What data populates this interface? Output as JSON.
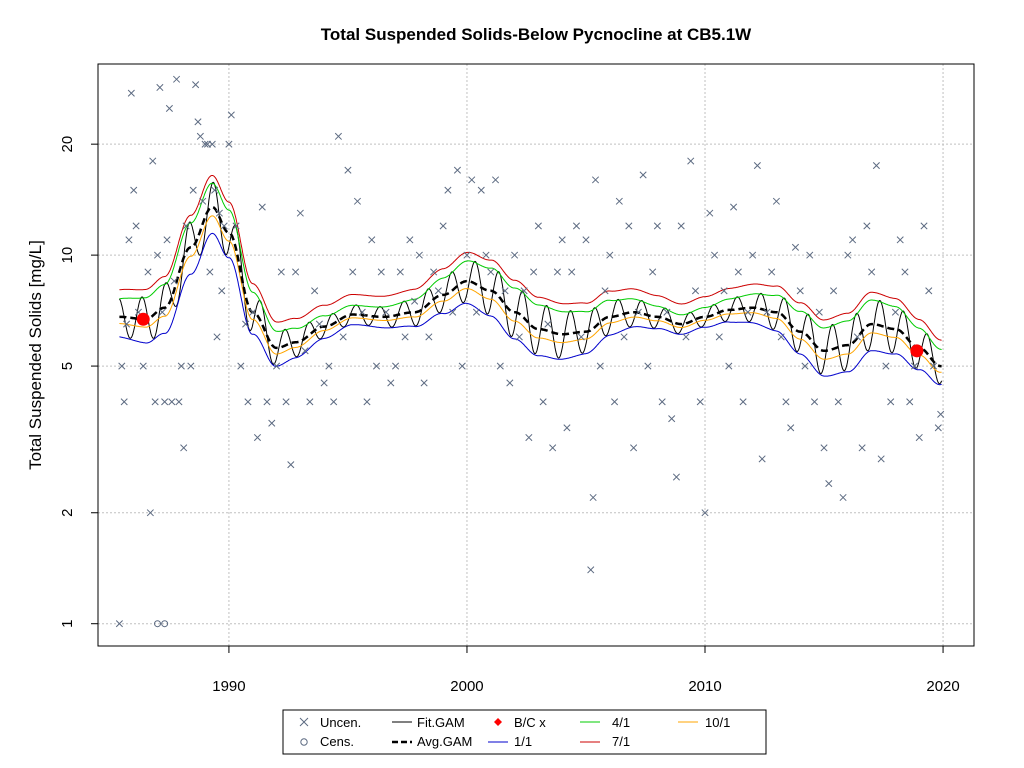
{
  "chart_data": {
    "type": "scatter",
    "title": "Total Suspended Solids-Below Pycnocline at CB5.1W",
    "xlabel": "",
    "ylabel": "Total Suspended Solids [mg/L]",
    "xlim": [
      1984.5,
      2021.3
    ],
    "ylim": [
      0.87,
      33
    ],
    "log_y": true,
    "grid": true,
    "x_ticks": [
      1990,
      2000,
      2010,
      2020
    ],
    "y_ticks": [
      1,
      2,
      5,
      10,
      20
    ],
    "x_tick_labels": [
      "1990",
      "2000",
      "2010",
      "2020"
    ],
    "y_tick_labels": [
      "1",
      "2",
      "5",
      "10",
      "20"
    ],
    "colors": {
      "points": "#5d6b82",
      "fit": "#000000",
      "avg": "#000000",
      "bc": "#ff0000",
      "s1_1": "#0000cc",
      "s4_1": "#00cc00",
      "s7_1": "#cc0000",
      "s10_1": "#ffa500",
      "grid": "#c0c0c0"
    },
    "uncensored_points": [
      [
        1985.4,
        1.0
      ],
      [
        1985.5,
        5.0
      ],
      [
        1985.6,
        4.0
      ],
      [
        1985.7,
        6.5
      ],
      [
        1985.8,
        11.0
      ],
      [
        1985.9,
        27.5
      ],
      [
        1986.0,
        15.0
      ],
      [
        1986.1,
        12.0
      ],
      [
        1986.2,
        7.0
      ],
      [
        1986.4,
        5.0
      ],
      [
        1986.6,
        9.0
      ],
      [
        1986.7,
        2.0
      ],
      [
        1986.8,
        18.0
      ],
      [
        1986.9,
        4.0
      ],
      [
        1987.0,
        10.0
      ],
      [
        1987.1,
        28.5
      ],
      [
        1987.2,
        7.0
      ],
      [
        1987.3,
        4.0
      ],
      [
        1987.4,
        11.0
      ],
      [
        1987.5,
        25.0
      ],
      [
        1987.6,
        4.0
      ],
      [
        1987.7,
        8.5
      ],
      [
        1987.8,
        30.0
      ],
      [
        1987.9,
        4.0
      ],
      [
        1988.0,
        5.0
      ],
      [
        1988.1,
        3.0
      ],
      [
        1988.2,
        12.0
      ],
      [
        1988.4,
        5.0
      ],
      [
        1988.5,
        15.0
      ],
      [
        1988.6,
        29.0
      ],
      [
        1988.7,
        23.0
      ],
      [
        1988.8,
        21.0
      ],
      [
        1988.9,
        14.0
      ],
      [
        1989.0,
        20.0
      ],
      [
        1989.1,
        20.0
      ],
      [
        1989.2,
        9.0
      ],
      [
        1989.3,
        20.0
      ],
      [
        1989.4,
        15.0
      ],
      [
        1989.5,
        6.0
      ],
      [
        1989.6,
        13.0
      ],
      [
        1989.7,
        8.0
      ],
      [
        1989.8,
        12.0
      ],
      [
        1990.0,
        20.0
      ],
      [
        1990.1,
        24.0
      ],
      [
        1990.3,
        12.0
      ],
      [
        1990.5,
        5.0
      ],
      [
        1990.7,
        6.5
      ],
      [
        1990.8,
        4.0
      ],
      [
        1991.0,
        7.0
      ],
      [
        1991.2,
        3.2
      ],
      [
        1991.4,
        13.5
      ],
      [
        1991.6,
        4.0
      ],
      [
        1991.8,
        3.5
      ],
      [
        1992.0,
        5.0
      ],
      [
        1992.2,
        9.0
      ],
      [
        1992.4,
        4.0
      ],
      [
        1992.6,
        2.7
      ],
      [
        1992.8,
        9.0
      ],
      [
        1993.0,
        13.0
      ],
      [
        1993.2,
        5.5
      ],
      [
        1993.4,
        4.0
      ],
      [
        1993.6,
        8.0
      ],
      [
        1993.8,
        6.5
      ],
      [
        1994.0,
        4.5
      ],
      [
        1994.2,
        5.0
      ],
      [
        1994.4,
        4.0
      ],
      [
        1994.6,
        21.0
      ],
      [
        1994.8,
        6.0
      ],
      [
        1995.0,
        17.0
      ],
      [
        1995.2,
        9.0
      ],
      [
        1995.4,
        14.0
      ],
      [
        1995.6,
        7.0
      ],
      [
        1995.8,
        4.0
      ],
      [
        1996.0,
        11.0
      ],
      [
        1996.2,
        5.0
      ],
      [
        1996.4,
        9.0
      ],
      [
        1996.6,
        7.0
      ],
      [
        1996.8,
        4.5
      ],
      [
        1997.0,
        5.0
      ],
      [
        1997.2,
        9.0
      ],
      [
        1997.4,
        6.0
      ],
      [
        1997.6,
        11.0
      ],
      [
        1997.8,
        7.5
      ],
      [
        1998.0,
        10.0
      ],
      [
        1998.2,
        4.5
      ],
      [
        1998.4,
        6.0
      ],
      [
        1998.6,
        9.0
      ],
      [
        1998.8,
        8.0
      ],
      [
        1999.0,
        12.0
      ],
      [
        1999.2,
        15.0
      ],
      [
        1999.4,
        7.0
      ],
      [
        1999.6,
        17.0
      ],
      [
        1999.8,
        5.0
      ],
      [
        2000.0,
        10.0
      ],
      [
        2000.2,
        16.0
      ],
      [
        2000.4,
        7.0
      ],
      [
        2000.6,
        15.0
      ],
      [
        2000.8,
        10.0
      ],
      [
        2001.0,
        9.0
      ],
      [
        2001.2,
        16.0
      ],
      [
        2001.4,
        5.0
      ],
      [
        2001.6,
        8.0
      ],
      [
        2001.8,
        4.5
      ],
      [
        2002.0,
        10.0
      ],
      [
        2002.2,
        6.0
      ],
      [
        2002.4,
        8.0
      ],
      [
        2002.6,
        3.2
      ],
      [
        2002.8,
        9.0
      ],
      [
        2003.0,
        12.0
      ],
      [
        2003.2,
        4.0
      ],
      [
        2003.4,
        6.5
      ],
      [
        2003.6,
        3.0
      ],
      [
        2003.8,
        9.0
      ],
      [
        2004.0,
        11.0
      ],
      [
        2004.2,
        3.4
      ],
      [
        2004.4,
        9.0
      ],
      [
        2004.6,
        12.0
      ],
      [
        2004.8,
        6.0
      ],
      [
        2005.0,
        11.0
      ],
      [
        2005.2,
        1.4
      ],
      [
        2005.3,
        2.2
      ],
      [
        2005.4,
        16.0
      ],
      [
        2005.6,
        5.0
      ],
      [
        2005.8,
        8.0
      ],
      [
        2006.0,
        10.0
      ],
      [
        2006.2,
        4.0
      ],
      [
        2006.4,
        14.0
      ],
      [
        2006.6,
        6.0
      ],
      [
        2006.8,
        12.0
      ],
      [
        2007.0,
        3.0
      ],
      [
        2007.2,
        7.0
      ],
      [
        2007.4,
        16.5
      ],
      [
        2007.6,
        5.0
      ],
      [
        2007.8,
        9.0
      ],
      [
        2008.0,
        12.0
      ],
      [
        2008.2,
        4.0
      ],
      [
        2008.4,
        7.0
      ],
      [
        2008.6,
        3.6
      ],
      [
        2008.8,
        2.5
      ],
      [
        2009.0,
        12.0
      ],
      [
        2009.2,
        6.0
      ],
      [
        2009.4,
        18.0
      ],
      [
        2009.6,
        8.0
      ],
      [
        2009.8,
        4.0
      ],
      [
        2010.0,
        2.0
      ],
      [
        2010.2,
        13.0
      ],
      [
        2010.4,
        10.0
      ],
      [
        2010.6,
        6.0
      ],
      [
        2010.8,
        8.0
      ],
      [
        2011.0,
        5.0
      ],
      [
        2011.2,
        13.5
      ],
      [
        2011.4,
        9.0
      ],
      [
        2011.6,
        4.0
      ],
      [
        2011.8,
        7.0
      ],
      [
        2012.0,
        10.0
      ],
      [
        2012.2,
        17.5
      ],
      [
        2012.4,
        2.8
      ],
      [
        2012.6,
        7.0
      ],
      [
        2012.8,
        9.0
      ],
      [
        2013.0,
        14.0
      ],
      [
        2013.2,
        6.0
      ],
      [
        2013.4,
        4.0
      ],
      [
        2013.6,
        3.4
      ],
      [
        2013.8,
        10.5
      ],
      [
        2014.0,
        8.0
      ],
      [
        2014.2,
        5.0
      ],
      [
        2014.4,
        10.0
      ],
      [
        2014.6,
        4.0
      ],
      [
        2014.8,
        7.0
      ],
      [
        2015.0,
        3.0
      ],
      [
        2015.2,
        2.4
      ],
      [
        2015.4,
        8.0
      ],
      [
        2015.6,
        4.0
      ],
      [
        2015.8,
        2.2
      ],
      [
        2016.0,
        10.0
      ],
      [
        2016.2,
        11.0
      ],
      [
        2016.4,
        6.0
      ],
      [
        2016.6,
        3.0
      ],
      [
        2016.8,
        12.0
      ],
      [
        2017.0,
        9.0
      ],
      [
        2017.2,
        17.5
      ],
      [
        2017.4,
        2.8
      ],
      [
        2017.6,
        5.0
      ],
      [
        2017.8,
        4.0
      ],
      [
        2018.0,
        7.0
      ],
      [
        2018.2,
        11.0
      ],
      [
        2018.4,
        9.0
      ],
      [
        2018.6,
        4.0
      ],
      [
        2018.8,
        5.0
      ],
      [
        2019.0,
        3.2
      ],
      [
        2019.2,
        12.0
      ],
      [
        2019.4,
        8.0
      ],
      [
        2019.6,
        5.0
      ],
      [
        2019.8,
        3.4
      ],
      [
        2019.9,
        3.7
      ]
    ],
    "censored_points": [
      [
        1987.0,
        1.0
      ],
      [
        1987.3,
        1.0
      ]
    ],
    "bc_points": [
      [
        1986.4,
        6.7
      ],
      [
        2018.9,
        5.5
      ]
    ],
    "legend": {
      "entries": [
        "Uncen.",
        "Cens.",
        "Fit.GAM",
        "Avg.GAM",
        "B/C x",
        "1/1",
        "4/1",
        "7/1",
        "10/1"
      ]
    }
  }
}
